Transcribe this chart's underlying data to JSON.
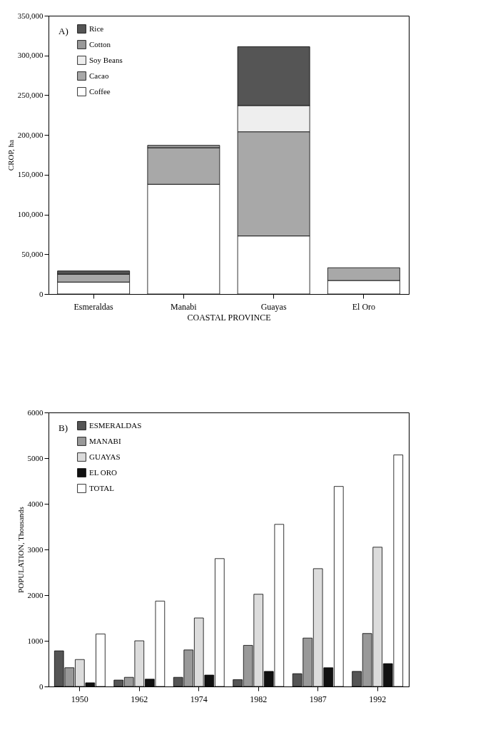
{
  "chart_data": [
    {
      "type": "bar",
      "stacked": true,
      "xlabel": "COASTAL PROVINCE",
      "ylabel": "CROP, ha",
      "annotations": [
        "A)"
      ],
      "legend": "top left",
      "categories": [
        "Esmeraldas",
        "Manabi",
        "Guayas",
        "El Oro"
      ],
      "series": [
        {
          "name": "Coffee",
          "color": "#ffffff",
          "values": [
            15000,
            138000,
            73000,
            17000
          ]
        },
        {
          "name": "Cacao",
          "color": "#a8a8a8",
          "values": [
            10000,
            46000,
            131000,
            16000
          ]
        },
        {
          "name": "Soy Beans",
          "color": "#eeeeee",
          "values": [
            null,
            null,
            33000,
            null
          ]
        },
        {
          "name": "Cotton",
          "color": "#999999",
          "values": [
            null,
            3000,
            null,
            null
          ]
        },
        {
          "name": "Rice",
          "color": "#555555",
          "values": [
            4000,
            null,
            74000,
            null
          ]
        }
      ],
      "ylim": [
        0,
        350000
      ],
      "yticks": [
        {
          "value": 0,
          "label": "0"
        },
        {
          "value": 50000,
          "label": "50,000"
        },
        {
          "value": 100000,
          "label": "100,000"
        },
        {
          "value": 150000,
          "label": "150,000"
        },
        {
          "value": 200000,
          "label": "200,000"
        },
        {
          "value": 250000,
          "label": "250,000"
        },
        {
          "value": 300000,
          "label": "300,000"
        },
        {
          "value": 350000,
          "label": "350,000"
        }
      ]
    },
    {
      "type": "bar",
      "ylabel": "POPULATION, Thousands",
      "annotations": [
        "B)"
      ],
      "legend": "top left",
      "categories": [
        "1950",
        "1962",
        "1974",
        "1982",
        "1987",
        "1992"
      ],
      "series": [
        {
          "name": "ESMERALDAS",
          "color": "#555555",
          "values": [
            780,
            140,
            200,
            150,
            280,
            330
          ]
        },
        {
          "name": "MANABI",
          "color": "#999999",
          "values": [
            410,
            200,
            800,
            900,
            1060,
            1160
          ]
        },
        {
          "name": "GUAYAS",
          "color": "#dcdcdc",
          "values": [
            590,
            1000,
            1500,
            2020,
            2580,
            3050
          ]
        },
        {
          "name": "EL ORO",
          "color": "#111111",
          "values": [
            80,
            160,
            250,
            330,
            410,
            500
          ]
        },
        {
          "name": "TOTAL",
          "color": "#ffffff",
          "values": [
            1150,
            1870,
            2800,
            3550,
            4380,
            5070
          ]
        }
      ],
      "ylim": [
        0,
        6000
      ],
      "yticks": [
        0,
        1000,
        2000,
        3000,
        4000,
        5000,
        6000
      ]
    }
  ]
}
